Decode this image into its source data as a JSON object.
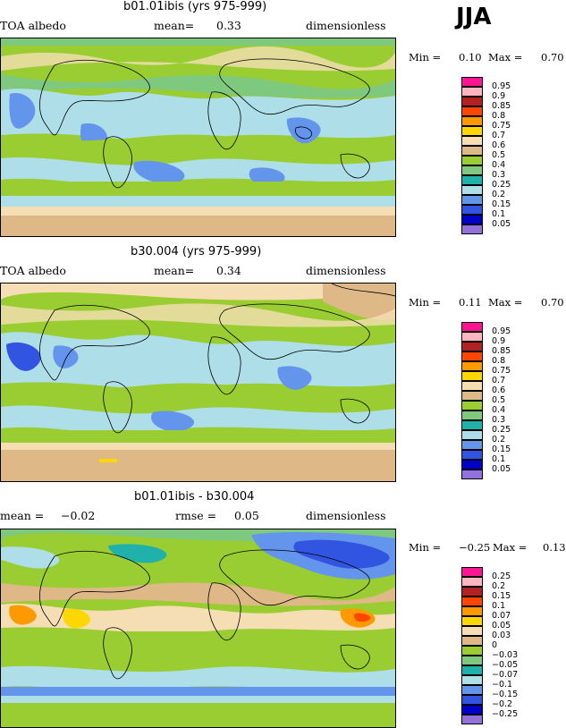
{
  "season": "JJA",
  "panels": [
    {
      "title": "b01.01ibis (yrs 975-999)",
      "left_label": "TOA albedo",
      "mean_label": "mean=",
      "mean_value": "0.33",
      "units": "dimensionless",
      "min_label": "Min =",
      "min_value": "0.10",
      "max_label": "Max =",
      "max_value": "0.70",
      "legend": {
        "labels": [
          "0.95",
          "0.9",
          "0.85",
          "0.8",
          "0.75",
          "0.7",
          "0.6",
          "0.5",
          "0.4",
          "0.3",
          "0.25",
          "0.2",
          "0.15",
          "0.1",
          "0.05"
        ],
        "colors": [
          "#ff1493",
          "#ffb6c1",
          "#b22222",
          "#ff4500",
          "#ff9900",
          "#ffd700",
          "#f5deb3",
          "#deb887",
          "#9acd32",
          "#7fc97f",
          "#20b2aa",
          "#aedfe8",
          "#6495ed",
          "#3155e0",
          "#0000c8",
          "#9370db"
        ]
      }
    },
    {
      "title": "b30.004 (yrs 975-999)",
      "left_label": "TOA albedo",
      "mean_label": "mean=",
      "mean_value": "0.34",
      "units": "dimensionless",
      "min_label": "Min =",
      "min_value": "0.11",
      "max_label": "Max =",
      "max_value": "0.70",
      "legend": {
        "labels": [
          "0.95",
          "0.9",
          "0.85",
          "0.8",
          "0.75",
          "0.7",
          "0.6",
          "0.5",
          "0.4",
          "0.3",
          "0.25",
          "0.2",
          "0.15",
          "0.1",
          "0.05"
        ],
        "colors": [
          "#ff1493",
          "#ffb6c1",
          "#b22222",
          "#ff4500",
          "#ff9900",
          "#ffd700",
          "#f5deb3",
          "#deb887",
          "#9acd32",
          "#7fc97f",
          "#20b2aa",
          "#aedfe8",
          "#6495ed",
          "#3155e0",
          "#0000c8",
          "#9370db"
        ]
      }
    },
    {
      "title": "b01.01ibis - b30.004",
      "left_label": "mean =",
      "mean_label": "",
      "mean_value": "−0.02",
      "rmse_label": "rmse =",
      "rmse_value": "0.05",
      "units": "dimensionless",
      "min_label": "Min =",
      "min_value": "−0.25",
      "max_label": "Max =",
      "max_value": "0.13",
      "legend": {
        "labels": [
          "0.25",
          "0.2",
          "0.15",
          "0.1",
          "0.07",
          "0.05",
          "0.03",
          "0",
          "−0.03",
          "−0.05",
          "−0.07",
          "−0.1",
          "−0.15",
          "−0.2",
          "−0.25"
        ],
        "colors": [
          "#ff1493",
          "#ffb6c1",
          "#b22222",
          "#ff4500",
          "#ff9900",
          "#ffd700",
          "#f5deb3",
          "#deb887",
          "#9acd32",
          "#7fc97f",
          "#20b2aa",
          "#aedfe8",
          "#6495ed",
          "#3155e0",
          "#0000c8",
          "#9370db"
        ]
      }
    }
  ],
  "chart_data": [
    {
      "type": "heatmap",
      "title": "b01.01ibis (yrs 975-999)",
      "variable": "TOA albedo",
      "units": "dimensionless",
      "mean": 0.33,
      "min": 0.1,
      "max": 0.7,
      "contour_levels": [
        0.05,
        0.1,
        0.15,
        0.2,
        0.25,
        0.3,
        0.4,
        0.5,
        0.6,
        0.7,
        0.75,
        0.8,
        0.85,
        0.9,
        0.95
      ]
    },
    {
      "type": "heatmap",
      "title": "b30.004 (yrs 975-999)",
      "variable": "TOA albedo",
      "units": "dimensionless",
      "mean": 0.34,
      "min": 0.11,
      "max": 0.7,
      "contour_levels": [
        0.05,
        0.1,
        0.15,
        0.2,
        0.25,
        0.3,
        0.4,
        0.5,
        0.6,
        0.7,
        0.75,
        0.8,
        0.85,
        0.9,
        0.95
      ]
    },
    {
      "type": "heatmap",
      "title": "b01.01ibis - b30.004",
      "units": "dimensionless",
      "mean": -0.02,
      "rmse": 0.05,
      "min": -0.25,
      "max": 0.13,
      "contour_levels": [
        -0.25,
        -0.2,
        -0.15,
        -0.1,
        -0.07,
        -0.05,
        -0.03,
        0,
        0.03,
        0.05,
        0.07,
        0.1,
        0.15,
        0.2,
        0.25
      ]
    }
  ]
}
